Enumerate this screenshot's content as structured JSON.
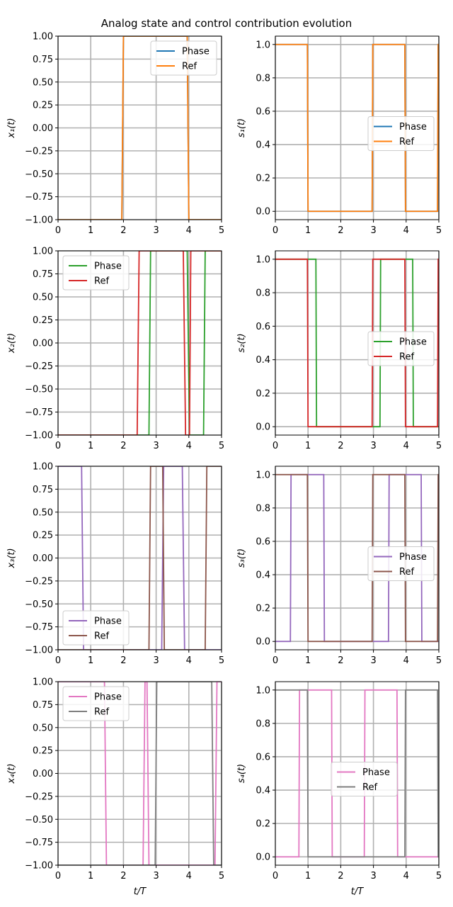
{
  "figure": {
    "title": "Analog state and control contribution evolution"
  },
  "chart_data": [
    {
      "type": "line",
      "panel": "x1",
      "ylabel": "x₁(t)",
      "xlabel": "",
      "xlim": [
        0,
        5
      ],
      "ylim": [
        -1,
        1
      ],
      "grid": true,
      "legend": "top-right",
      "series": [
        {
          "name": "Phase",
          "color": "#1f77b4",
          "points": [
            [
              0,
              -1
            ],
            [
              1.95,
              -1
            ],
            [
              2.0,
              1
            ],
            [
              3.95,
              1
            ],
            [
              4.0,
              -1
            ],
            [
              5,
              -1
            ]
          ]
        },
        {
          "name": "Ref",
          "color": "#ff7f0e",
          "points": [
            [
              0,
              -1
            ],
            [
              1.95,
              -1
            ],
            [
              2.0,
              1
            ],
            [
              3.95,
              1
            ],
            [
              4.0,
              -1
            ],
            [
              5,
              -1
            ]
          ]
        }
      ]
    },
    {
      "type": "line",
      "panel": "s1",
      "ylabel": "s₁(t)",
      "xlabel": "",
      "xlim": [
        0,
        5
      ],
      "ylim": [
        -0.05,
        1.05
      ],
      "grid": true,
      "legend": "center-right",
      "series": [
        {
          "name": "Phase",
          "color": "#1f77b4",
          "points": [
            [
              0,
              1
            ],
            [
              0.98,
              1
            ],
            [
              1.0,
              0
            ],
            [
              2.96,
              0
            ],
            [
              2.98,
              1
            ],
            [
              3.96,
              1
            ],
            [
              3.98,
              0
            ],
            [
              4.96,
              0
            ],
            [
              4.98,
              1
            ],
            [
              5,
              1
            ]
          ]
        },
        {
          "name": "Ref",
          "color": "#ff7f0e",
          "points": [
            [
              0,
              1
            ],
            [
              0.98,
              1
            ],
            [
              1.0,
              0
            ],
            [
              2.96,
              0
            ],
            [
              2.98,
              1
            ],
            [
              3.96,
              1
            ],
            [
              3.98,
              0
            ],
            [
              4.96,
              0
            ],
            [
              4.98,
              1
            ],
            [
              5,
              1
            ]
          ]
        }
      ]
    },
    {
      "type": "line",
      "panel": "x2",
      "ylabel": "x₂(t)",
      "xlabel": "",
      "xlim": [
        0,
        5
      ],
      "ylim": [
        -1,
        1
      ],
      "grid": true,
      "legend": "top-left",
      "series": [
        {
          "name": "Phase",
          "color": "#2ca02c",
          "points": [
            [
              0,
              -1
            ],
            [
              2.78,
              -1
            ],
            [
              2.83,
              1
            ],
            [
              3.95,
              1
            ],
            [
              4.02,
              -1
            ],
            [
              4.45,
              -1
            ],
            [
              4.5,
              1
            ],
            [
              5,
              1
            ]
          ]
        },
        {
          "name": "Ref",
          "color": "#d62728",
          "points": [
            [
              0,
              -1
            ],
            [
              2.42,
              -1
            ],
            [
              2.48,
              1
            ],
            [
              3.83,
              1
            ],
            [
              3.9,
              -1
            ],
            [
              4.02,
              -1
            ],
            [
              4.06,
              1
            ],
            [
              5,
              1
            ]
          ]
        }
      ]
    },
    {
      "type": "line",
      "panel": "s2",
      "ylabel": "s₂(t)",
      "xlabel": "",
      "xlim": [
        0,
        5
      ],
      "ylim": [
        -0.05,
        1.05
      ],
      "grid": true,
      "legend": "center-right",
      "series": [
        {
          "name": "Phase",
          "color": "#2ca02c",
          "points": [
            [
              0,
              1
            ],
            [
              1.24,
              1
            ],
            [
              1.26,
              0
            ],
            [
              3.2,
              0
            ],
            [
              3.22,
              1
            ],
            [
              4.2,
              1
            ],
            [
              4.22,
              0
            ],
            [
              5,
              0
            ]
          ]
        },
        {
          "name": "Ref",
          "color": "#d62728",
          "points": [
            [
              0,
              1
            ],
            [
              0.98,
              1
            ],
            [
              1.0,
              0
            ],
            [
              2.96,
              0
            ],
            [
              2.98,
              1
            ],
            [
              3.96,
              1
            ],
            [
              3.98,
              0
            ],
            [
              4.96,
              0
            ],
            [
              4.98,
              1
            ],
            [
              5,
              1
            ]
          ]
        }
      ]
    },
    {
      "type": "line",
      "panel": "x3",
      "ylabel": "x₃(t)",
      "xlabel": "",
      "xlim": [
        0,
        5
      ],
      "ylim": [
        -1,
        1
      ],
      "grid": true,
      "legend": "bottom-left",
      "series": [
        {
          "name": "Phase",
          "color": "#9467bd",
          "points": [
            [
              0,
              1
            ],
            [
              0.72,
              1
            ],
            [
              0.78,
              -1
            ],
            [
              3.17,
              -1
            ],
            [
              3.23,
              1
            ],
            [
              3.8,
              1
            ],
            [
              3.87,
              -1
            ],
            [
              5,
              -1
            ]
          ]
        },
        {
          "name": "Ref",
          "color": "#8c564b",
          "points": [
            [
              0,
              -1
            ],
            [
              2.78,
              -1
            ],
            [
              2.83,
              1
            ],
            [
              3.2,
              1
            ],
            [
              3.25,
              -1
            ],
            [
              4.5,
              -1
            ],
            [
              4.55,
              1
            ],
            [
              5,
              1
            ]
          ]
        }
      ]
    },
    {
      "type": "line",
      "panel": "s3",
      "ylabel": "s₃(t)",
      "xlabel": "",
      "xlim": [
        0,
        5
      ],
      "ylim": [
        -0.05,
        1.05
      ],
      "grid": true,
      "legend": "center-right",
      "series": [
        {
          "name": "Phase",
          "color": "#9467bd",
          "points": [
            [
              0,
              0
            ],
            [
              0.46,
              0
            ],
            [
              0.48,
              1
            ],
            [
              1.48,
              1
            ],
            [
              1.5,
              0
            ],
            [
              3.46,
              0
            ],
            [
              3.48,
              1
            ],
            [
              4.46,
              1
            ],
            [
              4.48,
              0
            ],
            [
              5,
              0
            ]
          ]
        },
        {
          "name": "Ref",
          "color": "#8c564b",
          "points": [
            [
              0,
              1
            ],
            [
              0.98,
              1
            ],
            [
              1.0,
              0
            ],
            [
              2.96,
              0
            ],
            [
              2.98,
              1
            ],
            [
              3.96,
              1
            ],
            [
              3.98,
              0
            ],
            [
              4.96,
              0
            ],
            [
              4.98,
              1
            ],
            [
              5,
              1
            ]
          ]
        }
      ]
    },
    {
      "type": "line",
      "panel": "x4",
      "ylabel": "x₄(t)",
      "xlabel": "t/T",
      "xlim": [
        0,
        5
      ],
      "ylim": [
        -1,
        1
      ],
      "grid": true,
      "legend": "top-left",
      "series": [
        {
          "name": "Phase",
          "color": "#e377c2",
          "points": [
            [
              0,
              1
            ],
            [
              1.42,
              1
            ],
            [
              1.48,
              -1
            ],
            [
              2.6,
              -1
            ],
            [
              2.66,
              1
            ],
            [
              2.72,
              1
            ],
            [
              2.78,
              -1
            ],
            [
              4.8,
              -1
            ],
            [
              4.86,
              1
            ],
            [
              5,
              1
            ]
          ]
        },
        {
          "name": "Ref",
          "color": "#7f7f7f",
          "points": [
            [
              0,
              -1
            ],
            [
              2.97,
              -1
            ],
            [
              3.02,
              1
            ],
            [
              4.7,
              1
            ],
            [
              4.76,
              -1
            ],
            [
              5,
              -1
            ]
          ]
        }
      ]
    },
    {
      "type": "line",
      "panel": "s4",
      "ylabel": "s₄(t)",
      "xlabel": "t/T",
      "xlim": [
        0,
        5
      ],
      "ylim": [
        -0.05,
        1.05
      ],
      "grid": true,
      "legend": "center",
      "series": [
        {
          "name": "Phase",
          "color": "#e377c2",
          "points": [
            [
              0,
              0
            ],
            [
              0.72,
              0
            ],
            [
              0.74,
              1
            ],
            [
              1.72,
              1
            ],
            [
              1.74,
              0
            ],
            [
              2.72,
              0
            ],
            [
              2.74,
              1
            ],
            [
              3.72,
              1
            ],
            [
              3.74,
              0
            ],
            [
              5,
              0
            ]
          ]
        },
        {
          "name": "Ref",
          "color": "#7f7f7f",
          "points": [
            [
              0,
              1
            ],
            [
              0.98,
              1
            ],
            [
              1.0,
              0
            ],
            [
              3.96,
              0
            ],
            [
              3.98,
              1
            ],
            [
              4.96,
              1
            ],
            [
              4.98,
              0
            ],
            [
              5,
              0
            ]
          ]
        }
      ]
    }
  ]
}
